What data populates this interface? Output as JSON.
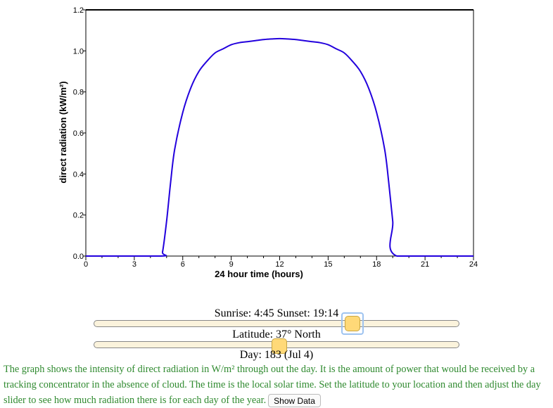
{
  "chart_data": {
    "type": "line",
    "title": "",
    "xlabel": "24 hour time (hours)",
    "ylabel": "direct radiation (kW/m²)",
    "xlim": [
      0,
      24
    ],
    "ylim": [
      0,
      1.2
    ],
    "x_ticks": [
      0,
      3,
      6,
      9,
      12,
      15,
      18,
      21,
      24
    ],
    "y_ticks": [
      "0.0",
      "0.2",
      "0.4",
      "0.6",
      "0.8",
      "1.0",
      "1.2"
    ],
    "series": [
      {
        "color": "#2200dd",
        "x": [
          0,
          4.6,
          4.75,
          5,
          5.25,
          5.5,
          6,
          6.5,
          7,
          7.5,
          8,
          8.5,
          9,
          9.5,
          10,
          10.5,
          11,
          11.5,
          12,
          12.5,
          13,
          13.5,
          14,
          14.5,
          15,
          15.5,
          16,
          16.5,
          17,
          17.5,
          18,
          18.5,
          18.75,
          19,
          19.25,
          24
        ],
        "y": [
          0,
          0,
          0.02,
          0.17,
          0.36,
          0.52,
          0.7,
          0.82,
          0.9,
          0.95,
          0.99,
          1.01,
          1.03,
          1.04,
          1.045,
          1.05,
          1.055,
          1.058,
          1.06,
          1.058,
          1.055,
          1.05,
          1.045,
          1.04,
          1.03,
          1.01,
          0.99,
          0.95,
          0.9,
          0.82,
          0.7,
          0.52,
          0.36,
          0.17,
          0,
          0
        ]
      }
    ]
  },
  "controls": {
    "sun_times": "Sunrise: 4:45 Sunset: 19:14",
    "latitude_label": "Latitude: 37° North",
    "latitude_value": 37,
    "latitude_range": [
      -90,
      90
    ],
    "day_label": "Day: 183 (Jul 4)",
    "day_value": 183,
    "day_range": [
      1,
      365
    ]
  },
  "description": "The graph shows the intensity of direct radiation in W/m² through out the day. It is the amount of power that would be received by a tracking concentrator in the absence of cloud. The time is the local solar time. Set the latitude to your location and then adjust the day slider to see how much radiation there is for each day of the year.",
  "show_data_label": "Show Data"
}
